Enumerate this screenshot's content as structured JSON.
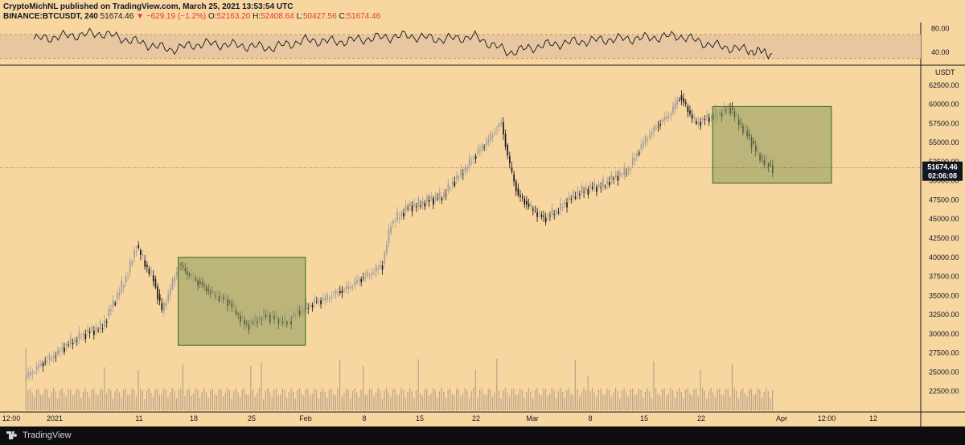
{
  "header": {
    "line1": "CryptoMichNL published on TradingView.com, March 25, 2021 13:53:54 UTC",
    "symbol": "BINANCE:BTCUSDT, 240",
    "last": "51674.46",
    "change": "▼ −629.19 (−1.2%)",
    "o_label": "O:",
    "o": "52163.20",
    "h_label": "H:",
    "h": "52408.64",
    "l_label": "L:",
    "l": "50427.56",
    "c_label": "C:",
    "c": "51674.46"
  },
  "footer": {
    "brand": "TradingView"
  },
  "colors": {
    "background": "#f8d6a0",
    "up_candle": "#9e9e9e",
    "down_candle": "#131722",
    "box_fill": "#8a9a5b",
    "box_border": "#2e6b1f",
    "rsi_band": "#e8c6a0"
  },
  "chart_data": [
    {
      "type": "line",
      "name": "RSI",
      "y_ticks": [
        "80.00",
        "40.00"
      ],
      "ylim": [
        20,
        90
      ],
      "band": [
        30,
        70
      ],
      "x": [
        "2020-12-28",
        "2021-01-01",
        "2021-01-05",
        "2021-01-09",
        "2021-01-13",
        "2021-01-17",
        "2021-01-21",
        "2021-01-25",
        "2021-01-29",
        "2021-02-02",
        "2021-02-06",
        "2021-02-10",
        "2021-02-14",
        "2021-02-18",
        "2021-02-22",
        "2021-02-26",
        "2021-03-02",
        "2021-03-06",
        "2021-03-10",
        "2021-03-14",
        "2021-03-18",
        "2021-03-22",
        "2021-03-25"
      ],
      "values": [
        62,
        68,
        72,
        58,
        45,
        55,
        52,
        48,
        60,
        58,
        64,
        68,
        62,
        66,
        40,
        52,
        58,
        62,
        64,
        68,
        52,
        44,
        38
      ]
    },
    {
      "type": "candlestick",
      "symbol": "BINANCE:BTCUSDT",
      "interval": "240",
      "y_unit": "USDT",
      "ylim": [
        20000,
        65000
      ],
      "y_ticks": [
        "62500.00",
        "60000.00",
        "57500.00",
        "55000.00",
        "52500.00",
        "50000.00",
        "47500.00",
        "45000.00",
        "42500.00",
        "40000.00",
        "37500.00",
        "35000.00",
        "32500.00",
        "30000.00",
        "27500.00",
        "25000.00",
        "22500.00"
      ],
      "x_ticks": [
        "12:00",
        "2021",
        "11",
        "18",
        "25",
        "Feb",
        "8",
        "15",
        "22",
        "Mar",
        "8",
        "15",
        "22",
        "Apr",
        "12:00",
        "12"
      ],
      "last_price": "51674.46",
      "countdown": "02:06:08",
      "price_path": {
        "dates": [
          "2020-12-27",
          "2020-12-30",
          "2021-01-02",
          "2021-01-05",
          "2021-01-08",
          "2021-01-09",
          "2021-01-11",
          "2021-01-12",
          "2021-01-14",
          "2021-01-17",
          "2021-01-20",
          "2021-01-22",
          "2021-01-24",
          "2021-01-27",
          "2021-01-28",
          "2021-01-30",
          "2021-02-02",
          "2021-02-05",
          "2021-02-07",
          "2021-02-08",
          "2021-02-10",
          "2021-02-14",
          "2021-02-17",
          "2021-02-21",
          "2021-02-22",
          "2021-02-23",
          "2021-02-26",
          "2021-02-28",
          "2021-03-02",
          "2021-03-05",
          "2021-03-08",
          "2021-03-10",
          "2021-03-13",
          "2021-03-14",
          "2021-03-16",
          "2021-03-18",
          "2021-03-20",
          "2021-03-22",
          "2021-03-23",
          "2021-03-24",
          "2021-03-25"
        ],
        "close": [
          24500,
          27000,
          29500,
          31000,
          38000,
          41500,
          37000,
          33000,
          39000,
          36000,
          34000,
          31000,
          32500,
          31500,
          33000,
          34000,
          35500,
          37500,
          39000,
          44500,
          46500,
          48000,
          52000,
          57500,
          52000,
          48000,
          45000,
          46500,
          48500,
          49500,
          51500,
          55500,
          59000,
          61000,
          57500,
          58500,
          59500,
          56000,
          54000,
          52500,
          51674
        ]
      },
      "boxes": [
        {
          "from": "2021-01-14",
          "to": "2021-01-29",
          "high": 40000,
          "low": 28500
        },
        {
          "from": "2021-03-18",
          "to": "2021-04-01",
          "high": 59700,
          "low": 49700
        }
      ],
      "volume_ylim": [
        0,
        20000
      ]
    }
  ]
}
